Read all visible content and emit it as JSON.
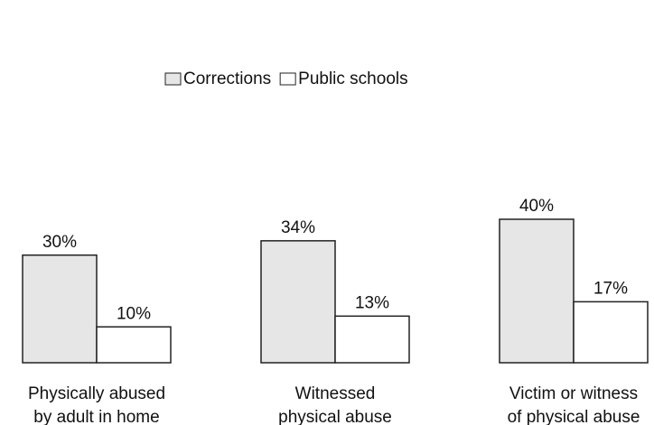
{
  "chart_data": {
    "type": "bar",
    "categories": [
      [
        "Physically abused",
        "by adult in home"
      ],
      [
        "Witnessed",
        "physical abuse"
      ],
      [
        "Victim or witness",
        "of physical abuse"
      ]
    ],
    "series": [
      {
        "name": "Corrections",
        "color": "#e6e6e6",
        "values": [
          30,
          34,
          40
        ],
        "value_labels": [
          "30%",
          "34%",
          "40%"
        ]
      },
      {
        "name": "Public schools",
        "color": "#ffffff",
        "values": [
          10,
          13,
          17
        ],
        "value_labels": [
          "10%",
          "13%",
          "17%"
        ]
      }
    ],
    "legend": "top"
  }
}
